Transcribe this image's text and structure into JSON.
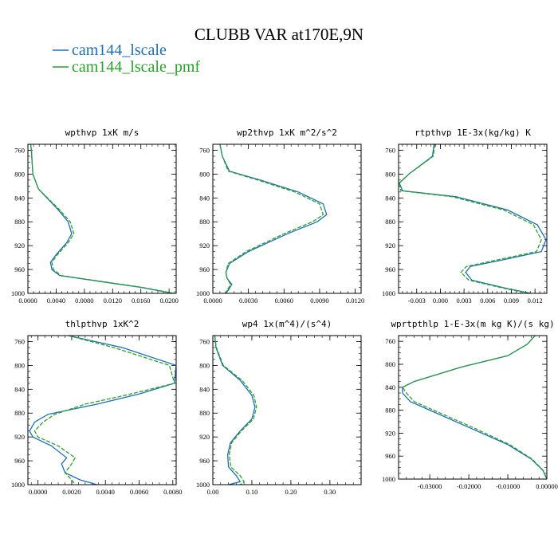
{
  "figure": {
    "title": "CLUBB VAR at170E,9N",
    "legend": [
      {
        "label": "cam144_lscale",
        "color": "#1f6fb4",
        "dash": false
      },
      {
        "label": "cam144_lscale_pmf",
        "color": "#2ca02c",
        "dash": true
      }
    ]
  },
  "chart_data": [
    {
      "type": "line",
      "title": "wpthvp  1xK m/s",
      "xlim": [
        0,
        0.021
      ],
      "ylim": [
        1000,
        750
      ],
      "xticks": [
        0,
        0.004,
        0.008,
        0.012,
        0.016,
        0.02
      ],
      "xticklabels": [
        "0.0000",
        "0.0040",
        "0.0080",
        "0.0120",
        "0.0160",
        "0.0200"
      ],
      "yticks": [
        760,
        800,
        840,
        880,
        920,
        960,
        1000
      ],
      "yticklabels": [
        "760",
        "800",
        "840",
        "880",
        "920",
        "960",
        "1000"
      ],
      "series": [
        {
          "name": "cam144_lscale",
          "color": "#1f6fb4",
          "x": [
            0.0004,
            0.0005,
            0.0007,
            0.0015,
            0.0043,
            0.0057,
            0.0062,
            0.0055,
            0.004,
            0.0032,
            0.0034,
            0.0045,
            0.009,
            0.016,
            0.0205
          ],
          "y": [
            750,
            760,
            800,
            825,
            860,
            880,
            900,
            915,
            935,
            948,
            960,
            970,
            978,
            990,
            1000
          ]
        },
        {
          "name": "cam144_lscale_pmf",
          "color": "#2ca02c",
          "x": [
            0.0004,
            0.0005,
            0.0007,
            0.0015,
            0.0045,
            0.006,
            0.0065,
            0.0057,
            0.0042,
            0.0034,
            0.0036,
            0.0047,
            0.0092,
            0.0162,
            0.0207
          ],
          "y": [
            750,
            760,
            800,
            825,
            860,
            880,
            900,
            915,
            935,
            948,
            960,
            970,
            978,
            990,
            1000
          ]
        }
      ]
    },
    {
      "type": "line",
      "title": "wp2thvp  1xK m^2/s^2",
      "xlim": [
        0,
        0.0125
      ],
      "ylim": [
        1000,
        750
      ],
      "xticks": [
        0,
        0.003,
        0.006,
        0.009,
        0.012
      ],
      "xticklabels": [
        "0.0000",
        "0.0030",
        "0.0060",
        "0.0090",
        "0.0120"
      ],
      "yticks": [
        760,
        800,
        840,
        880,
        920,
        960,
        1000
      ],
      "yticklabels": [
        "760",
        "800",
        "840",
        "880",
        "920",
        "960",
        "1000"
      ],
      "series": [
        {
          "name": "cam144_lscale",
          "color": "#1f6fb4",
          "x": [
            0.0006,
            0.0008,
            0.0014,
            0.004,
            0.0072,
            0.0093,
            0.0096,
            0.0088,
            0.0063,
            0.003,
            0.0014,
            0.0011,
            0.0012,
            0.0016,
            0.0013,
            0.001
          ],
          "y": [
            750,
            770,
            795,
            810,
            830,
            850,
            868,
            880,
            900,
            930,
            950,
            965,
            975,
            985,
            995,
            1000
          ]
        },
        {
          "name": "cam144_lscale_pmf",
          "color": "#2ca02c",
          "x": [
            0.0006,
            0.0008,
            0.0013,
            0.0038,
            0.0069,
            0.009,
            0.0093,
            0.0084,
            0.006,
            0.0028,
            0.0013,
            0.0011,
            0.0012,
            0.0015,
            0.0012,
            0.001
          ],
          "y": [
            750,
            770,
            795,
            810,
            830,
            850,
            868,
            880,
            900,
            930,
            950,
            965,
            975,
            985,
            995,
            1000
          ]
        }
      ]
    },
    {
      "type": "line",
      "title": "rtpthvp  1E-3x(kg/kg) K",
      "xlim": [
        -0.0053,
        0.0135
      ],
      "ylim": [
        1000,
        750
      ],
      "xticks": [
        -0.003,
        0,
        0.003,
        0.006,
        0.009,
        0.012
      ],
      "xticklabels": [
        "-0.003",
        "0.000",
        "0.003",
        "0.006",
        "0.009",
        "0.012"
      ],
      "yticks": [
        760,
        800,
        840,
        880,
        920,
        960,
        1000
      ],
      "yticklabels": [
        "760",
        "800",
        "840",
        "880",
        "920",
        "960",
        "1000"
      ],
      "series": [
        {
          "name": "cam144_lscale",
          "color": "#1f6fb4",
          "x": [
            -0.0008,
            -0.001,
            -0.004,
            -0.0052,
            -0.0048,
            0.002,
            0.0085,
            0.0123,
            0.0134,
            0.0128,
            0.0075,
            0.0038,
            0.0032,
            0.004,
            0.0085,
            0.0115
          ],
          "y": [
            750,
            770,
            800,
            815,
            828,
            838,
            860,
            885,
            910,
            930,
            945,
            955,
            965,
            978,
            992,
            1000
          ]
        },
        {
          "name": "cam144_lscale_pmf",
          "color": "#2ca02c",
          "x": [
            -0.0007,
            -0.0009,
            -0.004,
            -0.0052,
            -0.005,
            0.0015,
            0.008,
            0.0118,
            0.0128,
            0.0122,
            0.0068,
            0.0033,
            0.0026,
            0.0036,
            0.0082,
            0.0113
          ],
          "y": [
            750,
            770,
            800,
            815,
            828,
            838,
            860,
            885,
            910,
            930,
            945,
            955,
            965,
            978,
            992,
            1000
          ]
        }
      ]
    },
    {
      "type": "line",
      "title": "thlpthvp  1xK^2",
      "xlim": [
        -0.0006,
        0.0082
      ],
      "ylim": [
        1000,
        750
      ],
      "xticks": [
        0,
        0.002,
        0.004,
        0.006,
        0.008
      ],
      "xticklabels": [
        "0.0000",
        "0.0020",
        "0.0040",
        "0.0060",
        "0.0080"
      ],
      "yticks": [
        760,
        800,
        840,
        880,
        920,
        960,
        1000
      ],
      "yticklabels": [
        "760",
        "800",
        "840",
        "880",
        "920",
        "960",
        "1000"
      ],
      "series": [
        {
          "name": "cam144_lscale",
          "color": "#1f6fb4",
          "x": [
            0.0018,
            0.005,
            0.0082,
            0.0081,
            0.006,
            0.0035,
            0.0006,
            -0.0002,
            -0.0005,
            -0.0003,
            0.0008,
            0.0017,
            0.0014,
            0.0016,
            0.0025,
            0.0035
          ],
          "y": [
            750,
            770,
            800,
            830,
            848,
            865,
            882,
            895,
            910,
            920,
            935,
            955,
            965,
            980,
            992,
            1000
          ]
        },
        {
          "name": "cam144_lscale_pmf",
          "color": "#2ca02c",
          "x": [
            0.0018,
            0.0045,
            0.0078,
            0.0081,
            0.0055,
            0.0028,
            0.001,
            0.0003,
            -0.0002,
            0.0,
            0.0012,
            0.0022,
            0.002,
            0.0016,
            0.002,
            0.0022
          ],
          "y": [
            750,
            770,
            800,
            830,
            848,
            865,
            882,
            895,
            910,
            920,
            935,
            955,
            965,
            980,
            992,
            1000
          ]
        }
      ]
    },
    {
      "type": "line",
      "title": "wp4  1x(m^4)/(s^4)",
      "xlim": [
        0,
        0.38
      ],
      "ylim": [
        1000,
        750
      ],
      "xticks": [
        0,
        0.1,
        0.2,
        0.3
      ],
      "xticklabels": [
        "0.00",
        "0.10",
        "0.20",
        "0.30"
      ],
      "yticks": [
        760,
        800,
        840,
        880,
        920,
        960,
        1000
      ],
      "yticklabels": [
        "760",
        "800",
        "840",
        "880",
        "920",
        "960",
        "1000"
      ],
      "series": [
        {
          "name": "cam144_lscale",
          "color": "#1f6fb4",
          "x": [
            0.005,
            0.008,
            0.025,
            0.07,
            0.1,
            0.108,
            0.1,
            0.07,
            0.045,
            0.038,
            0.04,
            0.06,
            0.07,
            0.04
          ],
          "y": [
            750,
            770,
            800,
            825,
            850,
            870,
            890,
            910,
            930,
            950,
            970,
            985,
            995,
            1000
          ]
        },
        {
          "name": "cam144_lscale_pmf",
          "color": "#2ca02c",
          "x": [
            0.005,
            0.009,
            0.027,
            0.075,
            0.105,
            0.112,
            0.104,
            0.073,
            0.048,
            0.042,
            0.046,
            0.07,
            0.08,
            0.07
          ],
          "y": [
            750,
            770,
            800,
            825,
            850,
            870,
            890,
            910,
            930,
            950,
            970,
            985,
            995,
            1000
          ]
        }
      ]
    },
    {
      "type": "line",
      "title": "wprtpthlp  1-E-3x(m kg K)/(s kg)",
      "xlim": [
        -0.038,
        0.0
      ],
      "ylim": [
        1000,
        750
      ],
      "xticks": [
        -0.03,
        -0.02,
        -0.01,
        0.0
      ],
      "xticklabels": [
        "-0.03000",
        "-0.02000",
        "-0.01000",
        "0.00000"
      ],
      "yticks": [
        760,
        800,
        840,
        880,
        920,
        960,
        1000
      ],
      "yticklabels": [
        "760",
        "800",
        "840",
        "880",
        "920",
        "960",
        "1000"
      ],
      "series": [
        {
          "name": "cam144_lscale",
          "color": "#1f6fb4",
          "x": [
            -0.003,
            -0.005,
            -0.01,
            -0.022,
            -0.034,
            -0.037,
            -0.037,
            -0.035,
            -0.03,
            -0.02,
            -0.01,
            -0.004,
            -0.001,
            0.0
          ],
          "y": [
            750,
            765,
            785,
            805,
            830,
            840,
            850,
            865,
            880,
            910,
            940,
            965,
            985,
            1000
          ]
        },
        {
          "name": "cam144_lscale_pmf",
          "color": "#2ca02c",
          "x": [
            -0.003,
            -0.005,
            -0.01,
            -0.022,
            -0.034,
            -0.037,
            -0.036,
            -0.034,
            -0.029,
            -0.019,
            -0.0095,
            -0.0038,
            -0.0009,
            0.0
          ],
          "y": [
            750,
            765,
            785,
            805,
            830,
            840,
            850,
            865,
            880,
            910,
            940,
            965,
            985,
            1000
          ]
        }
      ]
    }
  ]
}
